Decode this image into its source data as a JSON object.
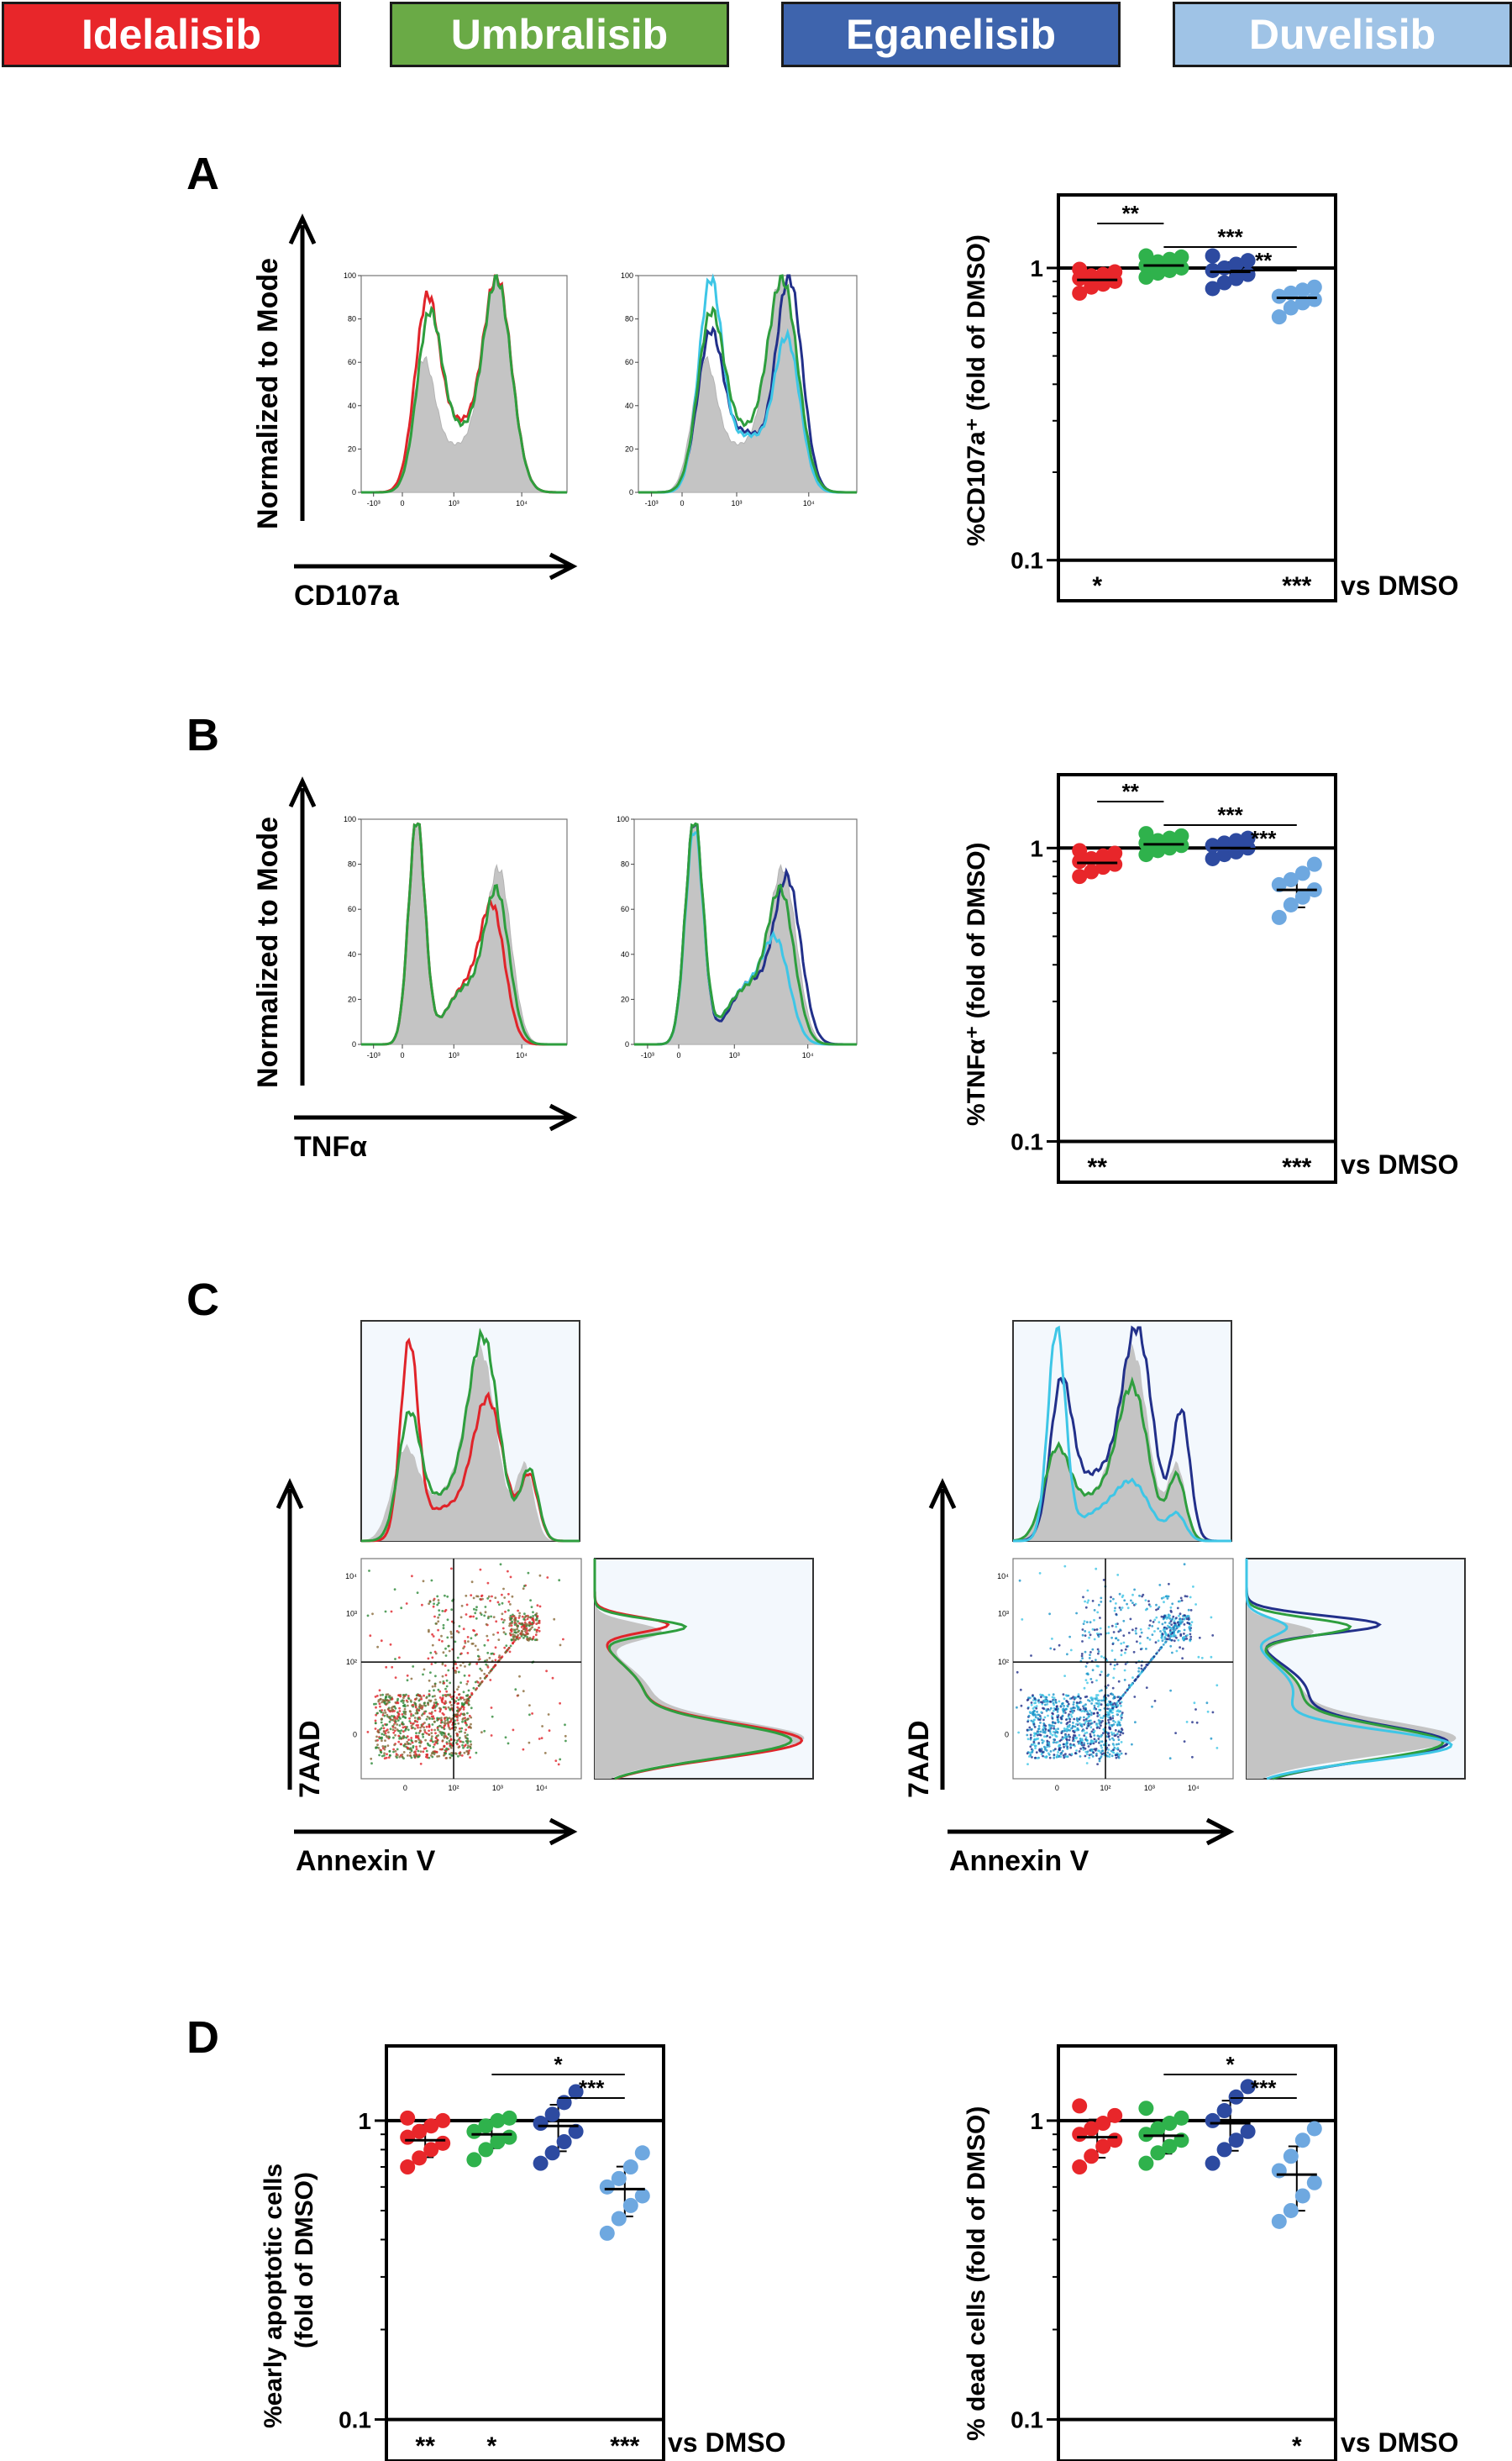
{
  "legend": [
    {
      "label": "Idelalisib",
      "color": "#e8262a"
    },
    {
      "label": "Umbralisib",
      "color": "#6aaa46"
    },
    {
      "label": "Eganelisib",
      "color": "#3e64ad"
    },
    {
      "label": "Duvelisib",
      "color": "#9fc3e6"
    }
  ],
  "dot_colors": {
    "Idelalisib": "#e8262a",
    "Umbralisib": "#2fb24c",
    "Eganelisib": "#2d4aa0",
    "Duvelisib": "#6ea8e0"
  },
  "histogram_colors": {
    "control_fill": "#c4c4c4",
    "Idelalisib": "#e0242a",
    "Umbralisib": "#2e9e3e",
    "Eganelisib": "#22308a",
    "Duvelisib": "#3ec6e6",
    "scatter_left": "#2e8a3a",
    "scatter_right": "#1c95c9"
  },
  "panels": {
    "A": {
      "letter": "A",
      "histogram": {
        "y_label": "Normalized to Mode",
        "x_label": "CD107a",
        "ticks_y": [
          "0",
          "20",
          "40",
          "60",
          "80",
          "100"
        ],
        "ticks_x": [
          "-10³",
          "0",
          "10³",
          "10⁴"
        ]
      },
      "dot": {
        "y_label": "%CD107a⁺ (fold of DMSO)",
        "ytick_hi": "1",
        "ytick_lo": "0.1",
        "brackets": [
          "**",
          "***",
          "**"
        ],
        "vs": [
          "*",
          "",
          "",
          "***"
        ],
        "vs_label": "vs DMSO"
      }
    },
    "B": {
      "letter": "B",
      "histogram": {
        "y_label": "Normalized to Mode",
        "x_label": "TNFα",
        "ticks_y": [
          "0",
          "20",
          "40",
          "60",
          "80",
          "100"
        ],
        "ticks_x": [
          "-10³",
          "0",
          "10³",
          "10⁴"
        ]
      },
      "dot": {
        "y_label": "%TNFα⁺ (fold of DMSO)",
        "ytick_hi": "1",
        "ytick_lo": "0.1",
        "brackets": [
          "**",
          "***",
          "***"
        ],
        "vs": [
          "**",
          "",
          "",
          "***"
        ],
        "vs_label": "vs DMSO"
      }
    },
    "C": {
      "letter": "C",
      "y_label": "7AAD",
      "x_label": "Annexin V",
      "ticks": [
        "0",
        "10²",
        "10³",
        "10⁴"
      ]
    },
    "D": {
      "letter": "D",
      "left": {
        "y_label_1": "%early apoptotic cells",
        "y_label_2": "(fold of DMSO)",
        "ytick_hi": "1",
        "ytick_lo": "0.1",
        "brackets": [
          "*",
          "***"
        ],
        "vs": [
          "**",
          "*",
          "",
          "***"
        ],
        "vs_label": "vs DMSO"
      },
      "right": {
        "y_label": "% dead cells (fold of DMSO)",
        "ytick_hi": "1",
        "ytick_lo": "0.1",
        "brackets": [
          "*",
          "***"
        ],
        "vs": [
          "",
          "",
          "",
          "*"
        ],
        "vs_label": "vs DMSO"
      }
    }
  },
  "chart_data": [
    {
      "type": "scatter",
      "panel": "A",
      "ylabel": "%CD107a⁺ (fold of DMSO)",
      "yscale": "log",
      "ylim": [
        0.1,
        2
      ],
      "categories": [
        "Idelalisib",
        "Umbralisib",
        "Eganelisib",
        "Duvelisib"
      ],
      "series": [
        {
          "name": "Idelalisib",
          "values": [
            0.82,
            0.86,
            0.88,
            0.9,
            0.92,
            0.94,
            0.95,
            0.97,
            0.99
          ],
          "mean": 0.91
        },
        {
          "name": "Umbralisib",
          "values": [
            0.93,
            0.96,
            0.98,
            1.0,
            1.02,
            1.05,
            1.07,
            1.09,
            1.1
          ],
          "mean": 1.02
        },
        {
          "name": "Eganelisib",
          "values": [
            0.85,
            0.89,
            0.92,
            0.95,
            0.98,
            1.0,
            1.03,
            1.06,
            1.1
          ],
          "mean": 0.97
        },
        {
          "name": "Duvelisib",
          "values": [
            0.68,
            0.73,
            0.76,
            0.78,
            0.8,
            0.82,
            0.84,
            0.86
          ],
          "mean": 0.79
        }
      ]
    },
    {
      "type": "scatter",
      "panel": "B",
      "ylabel": "%TNFα⁺ (fold of DMSO)",
      "yscale": "log",
      "ylim": [
        0.1,
        2
      ],
      "categories": [
        "Idelalisib",
        "Umbralisib",
        "Eganelisib",
        "Duvelisib"
      ],
      "series": [
        {
          "name": "Idelalisib",
          "values": [
            0.8,
            0.83,
            0.86,
            0.88,
            0.9,
            0.92,
            0.94,
            0.96,
            0.98
          ],
          "mean": 0.89
        },
        {
          "name": "Umbralisib",
          "values": [
            0.95,
            0.98,
            1.0,
            1.02,
            1.04,
            1.06,
            1.08,
            1.1,
            1.12
          ],
          "mean": 1.03
        },
        {
          "name": "Eganelisib",
          "values": [
            0.92,
            0.95,
            0.97,
            1.0,
            1.02,
            1.04,
            1.06,
            1.08
          ],
          "mean": 1.0
        },
        {
          "name": "Duvelisib",
          "values": [
            0.58,
            0.64,
            0.68,
            0.72,
            0.75,
            0.78,
            0.82,
            0.88
          ],
          "mean": 0.72
        }
      ]
    },
    {
      "type": "scatter",
      "panel": "D-left",
      "ylabel": "%early apoptotic cells (fold of DMSO)",
      "yscale": "log",
      "ylim": [
        0.1,
        2
      ],
      "categories": [
        "Idelalisib",
        "Umbralisib",
        "Eganelisib",
        "Duvelisib"
      ],
      "series": [
        {
          "name": "Idelalisib",
          "values": [
            0.7,
            0.75,
            0.8,
            0.84,
            0.88,
            0.92,
            0.96,
            1.0,
            1.02
          ],
          "mean": 0.86
        },
        {
          "name": "Umbralisib",
          "values": [
            0.74,
            0.8,
            0.85,
            0.88,
            0.92,
            0.96,
            1.0,
            1.02
          ],
          "mean": 0.9
        },
        {
          "name": "Eganelisib",
          "values": [
            0.72,
            0.78,
            0.85,
            0.92,
            0.98,
            1.05,
            1.15,
            1.25
          ],
          "mean": 0.96
        },
        {
          "name": "Duvelisib",
          "values": [
            0.42,
            0.47,
            0.52,
            0.56,
            0.6,
            0.64,
            0.7,
            0.78
          ],
          "mean": 0.59
        }
      ]
    },
    {
      "type": "scatter",
      "panel": "D-right",
      "ylabel": "% dead cells (fold of DMSO)",
      "yscale": "log",
      "ylim": [
        0.1,
        2
      ],
      "categories": [
        "Idelalisib",
        "Umbralisib",
        "Eganelisib",
        "Duvelisib"
      ],
      "series": [
        {
          "name": "Idelalisib",
          "values": [
            0.7,
            0.76,
            0.82,
            0.86,
            0.9,
            0.94,
            0.98,
            1.04,
            1.12
          ],
          "mean": 0.88
        },
        {
          "name": "Umbralisib",
          "values": [
            0.72,
            0.78,
            0.82,
            0.86,
            0.9,
            0.94,
            0.98,
            1.02,
            1.1
          ],
          "mean": 0.89
        },
        {
          "name": "Eganelisib",
          "values": [
            0.72,
            0.8,
            0.86,
            0.92,
            1.0,
            1.08,
            1.2,
            1.3
          ],
          "mean": 0.98
        },
        {
          "name": "Duvelisib",
          "values": [
            0.46,
            0.5,
            0.56,
            0.62,
            0.68,
            0.76,
            0.86,
            0.94
          ],
          "mean": 0.66
        }
      ]
    }
  ]
}
